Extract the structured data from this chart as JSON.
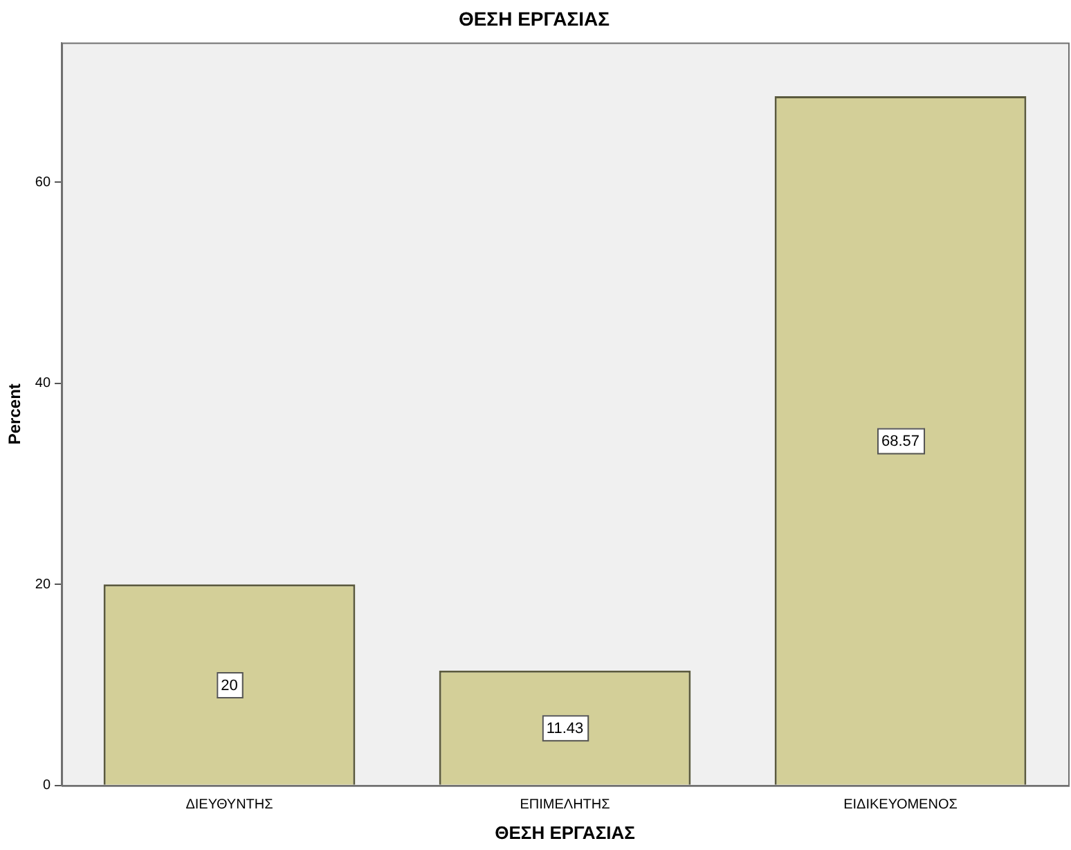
{
  "chart_data": {
    "type": "bar",
    "title": "ΘΕΣΗ ΕΡΓΑΣΙΑΣ",
    "xlabel": "ΘΕΣΗ ΕΡΓΑΣΙΑΣ",
    "ylabel": "Percent",
    "categories": [
      "ΔΙΕΥΘΥΝΤΗΣ",
      "ΕΠΙΜΕΛΗΤΗΣ",
      "ΕΙΔΙΚΕΥΟΜΕΝΟΣ"
    ],
    "values": [
      20,
      11.43,
      68.57
    ],
    "color": "#d3cf98",
    "ylim": [
      0,
      73.9
    ],
    "yticks": [
      0,
      20,
      40,
      60
    ],
    "grid": false,
    "data_labels": true
  }
}
